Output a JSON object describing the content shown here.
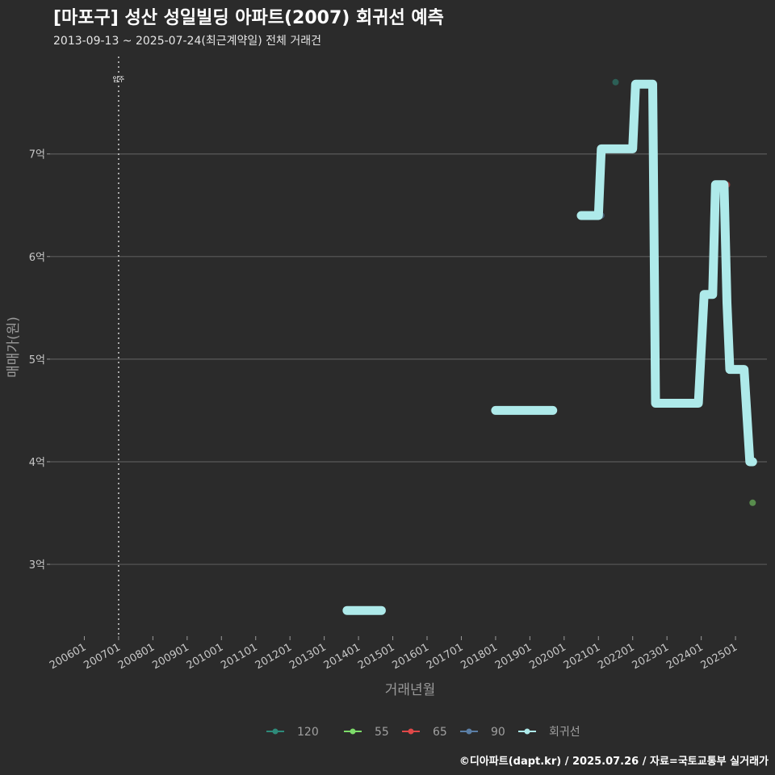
{
  "header": {
    "title": "[마포구] 성산 성일빌딩 아파트(2007) 회귀선 예측",
    "subtitle": "2013-09-13 ~ 2025-07-24(최근계약일) 전체 거래건"
  },
  "footer": {
    "credit": "©디아파트(dapt.kr) / 2025.07.26 / 자료=국토교통부 실거래가"
  },
  "colors": {
    "background": "#2b2b2b",
    "grid": "#5a5a5a",
    "regression": "#aeeaea",
    "s120": "#2e8b7a",
    "s55": "#7ddc6a",
    "s65": "#e04848",
    "s90": "#5b7fa6"
  },
  "chart_data": {
    "type": "line",
    "xlabel": "거래년월",
    "ylabel": "매매가(원)",
    "x_ticks": [
      "200601",
      "200701",
      "200801",
      "200901",
      "201001",
      "201101",
      "201201",
      "201301",
      "201401",
      "201501",
      "201601",
      "201701",
      "201801",
      "201901",
      "202001",
      "202101",
      "202201",
      "202301",
      "202401",
      "202501"
    ],
    "y_ticks": [
      {
        "value": 3,
        "label": "3억"
      },
      {
        "value": 4,
        "label": "4억"
      },
      {
        "value": 5,
        "label": "5억"
      },
      {
        "value": 6,
        "label": "6억"
      },
      {
        "value": 7,
        "label": "7억"
      }
    ],
    "ylim": [
      2.3,
      7.95
    ],
    "xlim": [
      "2005-01",
      "2025-12"
    ],
    "grid": "horizontal",
    "vline": {
      "x": "2007-01",
      "label": "입주"
    },
    "legend_position": "bottom",
    "series": [
      {
        "name": "120",
        "color_key": "s120",
        "kind": "points",
        "points": [
          {
            "x": "2021-07",
            "y": 7.7
          }
        ]
      },
      {
        "name": "55",
        "color_key": "s55",
        "kind": "points",
        "points": [
          {
            "x": "2025-07",
            "y": 3.6
          }
        ]
      },
      {
        "name": "65",
        "color_key": "s65",
        "kind": "points",
        "points": [
          {
            "x": "2024-10",
            "y": 6.7
          }
        ]
      },
      {
        "name": "90",
        "color_key": "s90",
        "kind": "points",
        "points": [
          {
            "x": "2021-02",
            "y": 6.4
          }
        ]
      },
      {
        "name": "회귀선",
        "color_key": "regression",
        "kind": "line",
        "segments": [
          [
            {
              "x": "2013-09",
              "y": 2.55
            },
            {
              "x": "2014-09",
              "y": 2.55
            }
          ],
          [
            {
              "x": "2018-01",
              "y": 4.5
            },
            {
              "x": "2019-09",
              "y": 4.5
            }
          ],
          [
            {
              "x": "2020-07",
              "y": 6.4
            },
            {
              "x": "2021-01",
              "y": 6.4
            },
            {
              "x": "2021-02",
              "y": 7.05
            },
            {
              "x": "2022-01",
              "y": 7.05
            },
            {
              "x": "2022-02",
              "y": 7.68
            },
            {
              "x": "2022-08",
              "y": 7.68
            },
            {
              "x": "2022-09",
              "y": 4.57
            },
            {
              "x": "2023-12",
              "y": 4.57
            },
            {
              "x": "2024-02",
              "y": 5.63
            },
            {
              "x": "2024-05",
              "y": 5.63
            },
            {
              "x": "2024-06",
              "y": 6.7
            },
            {
              "x": "2024-09",
              "y": 6.7
            },
            {
              "x": "2024-10",
              "y": 5.55
            },
            {
              "x": "2024-11",
              "y": 4.9
            },
            {
              "x": "2025-04",
              "y": 4.9
            },
            {
              "x": "2025-06",
              "y": 4.0
            },
            {
              "x": "2025-07",
              "y": 4.0
            }
          ]
        ]
      }
    ]
  }
}
